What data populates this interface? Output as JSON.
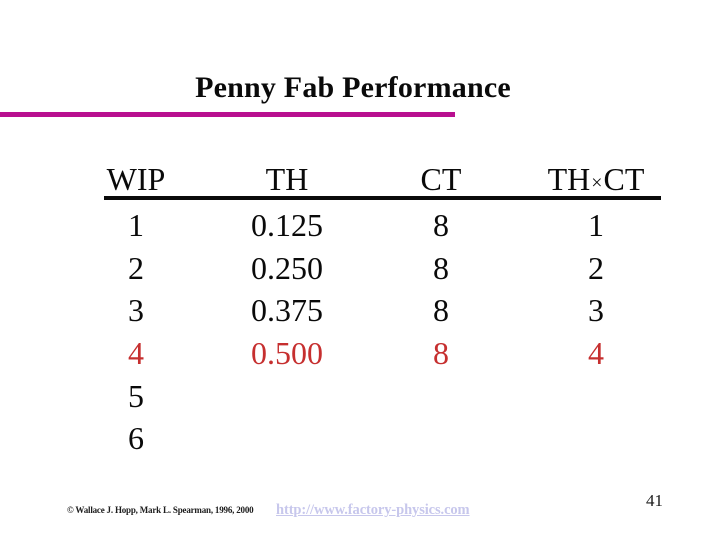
{
  "slide": {
    "title": "Penny Fab Performance",
    "accent_color": "#b80f8f",
    "highlight_color": "#c62f2f",
    "page_number": "41"
  },
  "table": {
    "headers": [
      "WIP",
      "TH",
      "CT",
      "TH×CT"
    ],
    "rows": [
      {
        "values": [
          "1",
          "0.125",
          "8",
          "1"
        ],
        "highlight": false
      },
      {
        "values": [
          "2",
          "0.250",
          "8",
          "2"
        ],
        "highlight": false
      },
      {
        "values": [
          "3",
          "0.375",
          "8",
          "3"
        ],
        "highlight": false
      },
      {
        "values": [
          "4",
          "0.500",
          "8",
          "4"
        ],
        "highlight": true
      },
      {
        "values": [
          "5",
          "",
          "",
          ""
        ],
        "highlight": false
      },
      {
        "values": [
          "6",
          "",
          "",
          ""
        ],
        "highlight": false
      }
    ]
  },
  "footer": {
    "copyright": "© Wallace J. Hopp, Mark L. Spearman, 1996, 2000",
    "link": "http://www.factory-physics.com"
  }
}
